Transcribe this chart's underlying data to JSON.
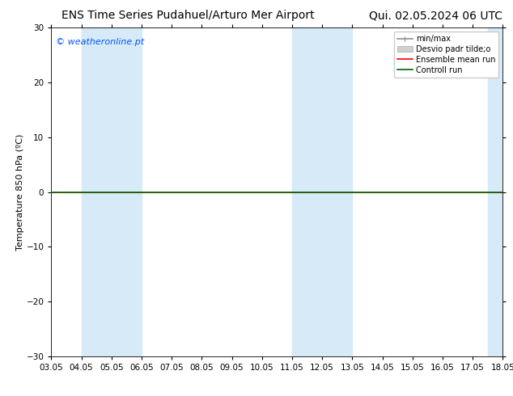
{
  "title_left": "ENS Time Series Pudahuel/Arturo Mer Airport",
  "title_right": "Qui. 02.05.2024 06 UTC",
  "ylabel": "Temperature 850 hPa (ºC)",
  "watermark": "© weatheronline.pt",
  "ylim": [
    -30,
    30
  ],
  "yticks": [
    -30,
    -20,
    -10,
    0,
    10,
    20,
    30
  ],
  "xlim_start": 3.05,
  "xlim_end": 18.05,
  "xtick_labels": [
    "03.05",
    "04.05",
    "05.05",
    "06.05",
    "07.05",
    "08.05",
    "09.05",
    "10.05",
    "11.05",
    "12.05",
    "13.05",
    "14.05",
    "15.05",
    "16.05",
    "17.05",
    "18.05"
  ],
  "xtick_positions": [
    3.05,
    4.05,
    5.05,
    6.05,
    7.05,
    8.05,
    9.05,
    10.05,
    11.05,
    12.05,
    13.05,
    14.05,
    15.05,
    16.05,
    17.05,
    18.05
  ],
  "shaded_regions": [
    {
      "x_start": 4.05,
      "x_end": 6.05
    },
    {
      "x_start": 11.05,
      "x_end": 13.05
    },
    {
      "x_start": 17.55,
      "x_end": 18.05
    }
  ],
  "shade_color": "#d6eaf8",
  "control_run_y": 0.0,
  "ensemble_mean_y": 0.0,
  "control_run_color": "#006400",
  "ensemble_mean_color": "#ff0000",
  "minmax_color": "#909090",
  "stddev_color": "#d0d0d0",
  "background_color": "#ffffff",
  "plot_bg_color": "#ffffff",
  "legend_labels": [
    "min/max",
    "Desvio padr tilde;o",
    "Ensemble mean run",
    "Controll run"
  ],
  "legend_colors": [
    "#909090",
    "#d0d0d0",
    "#ff0000",
    "#006400"
  ],
  "title_fontsize": 10,
  "watermark_color": "#0055ff",
  "watermark_fontsize": 8,
  "axis_label_fontsize": 8,
  "tick_fontsize": 7.5,
  "legend_fontsize": 7
}
